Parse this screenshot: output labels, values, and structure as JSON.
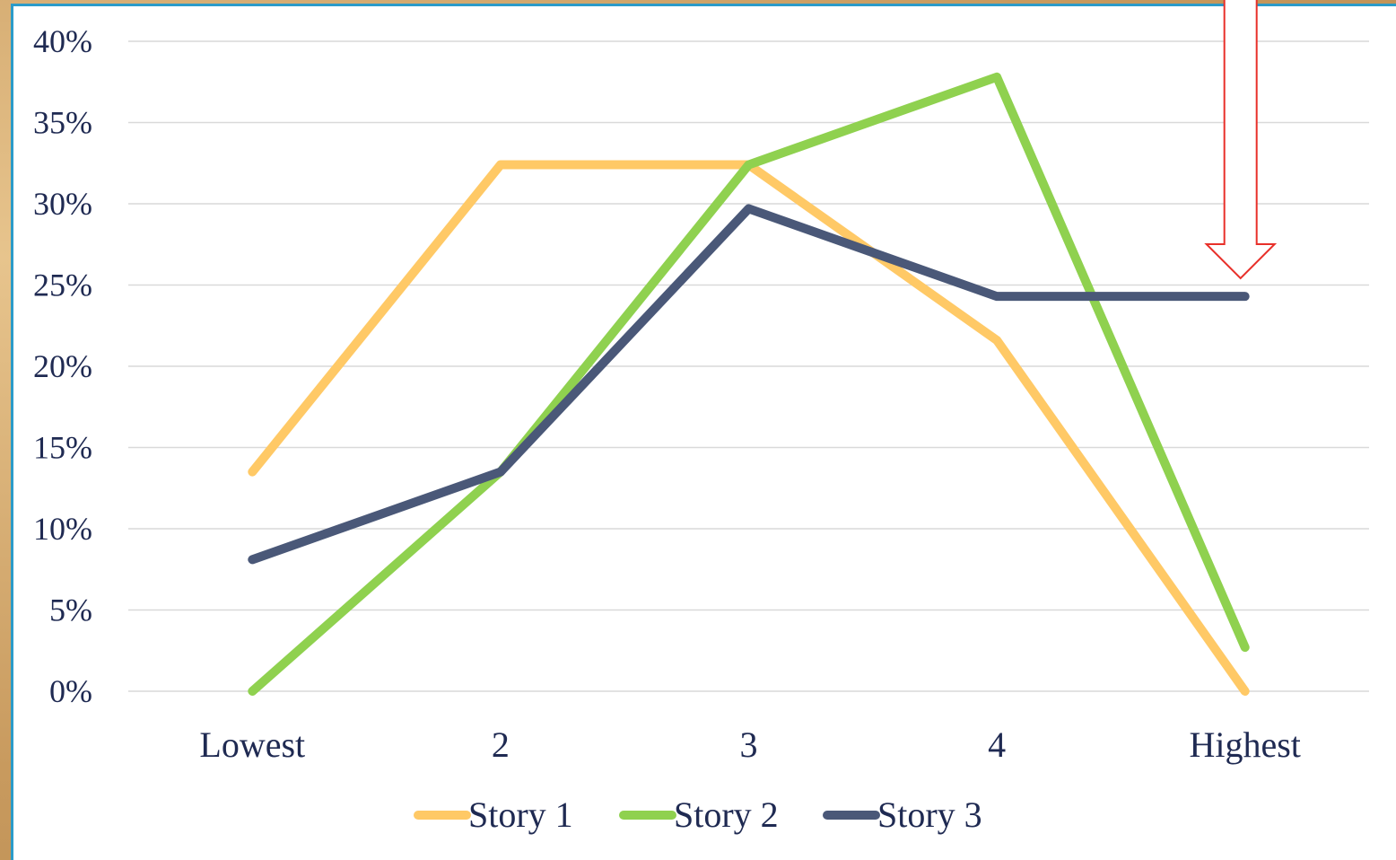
{
  "chart_data": {
    "type": "line",
    "categories": [
      "Lowest",
      "2",
      "3",
      "4",
      "Highest"
    ],
    "ylim": [
      0,
      40
    ],
    "yticks": [
      "0%",
      "5%",
      "10%",
      "15%",
      "20%",
      "25%",
      "30%",
      "35%",
      "40%"
    ],
    "grid": true,
    "legend_position": "bottom",
    "series": [
      {
        "name": "Story 1",
        "color": "#ffc966",
        "values": [
          13.5,
          32.4,
          32.4,
          21.6,
          0
        ]
      },
      {
        "name": "Story 2",
        "color": "#8fd14f",
        "values": [
          0,
          13.5,
          32.4,
          37.8,
          2.7
        ]
      },
      {
        "name": "Story 3",
        "color": "#4a5878",
        "values": [
          8.1,
          13.5,
          29.7,
          24.3,
          24.3
        ]
      }
    ],
    "annotation": {
      "type": "arrow",
      "color": "#e8302a",
      "points_to": "Highest"
    }
  }
}
